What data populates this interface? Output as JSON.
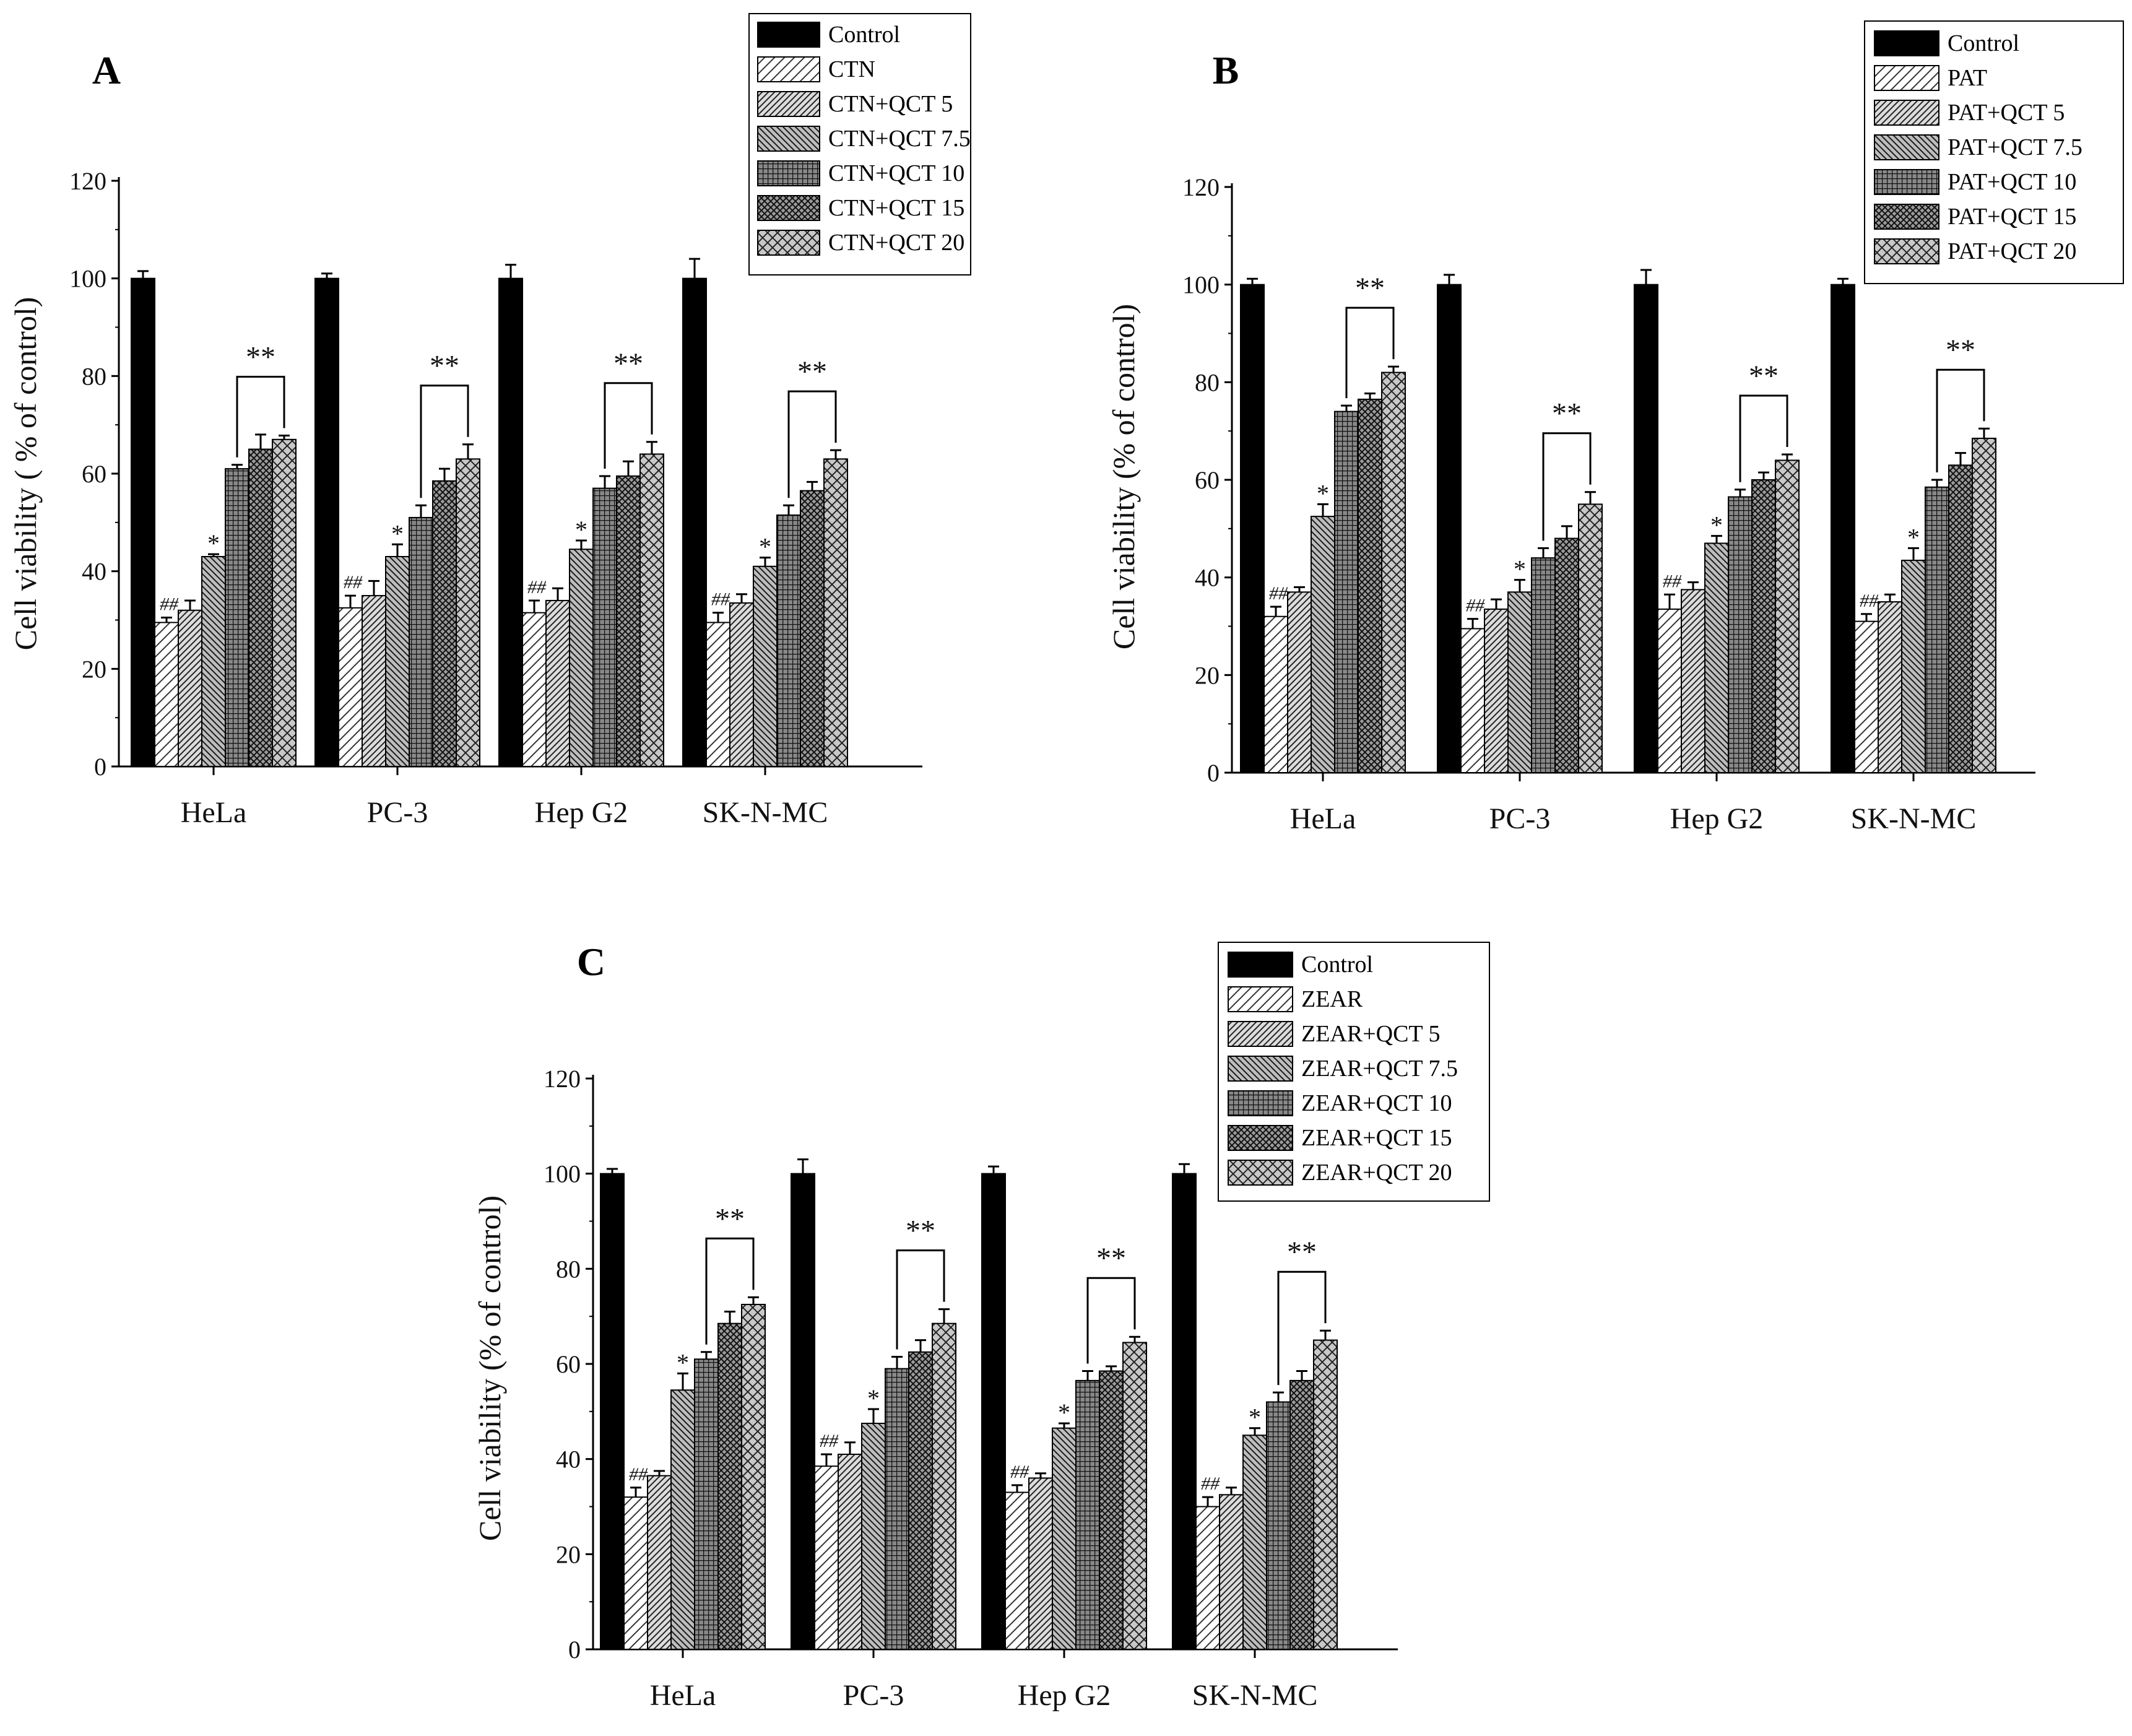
{
  "patterns": [
    {
      "id": "solid",
      "label": "solid black"
    },
    {
      "id": "sparse",
      "label": "sparse diagonal hatch"
    },
    {
      "id": "diag",
      "label": "diagonal hatch"
    },
    {
      "id": "back",
      "label": "back diagonal hatch"
    },
    {
      "id": "grid",
      "label": "dense grid"
    },
    {
      "id": "crossdense",
      "label": "dense cross hatch"
    },
    {
      "id": "cross",
      "label": "cross hatch"
    }
  ],
  "chart_data": [
    {
      "type": "bar",
      "panel_label": "A",
      "ylabel": "Cell viability ( % of control)",
      "ylim": [
        0,
        120
      ],
      "yticks": [
        0,
        20,
        40,
        60,
        80,
        100,
        120
      ],
      "categories": [
        "HeLa",
        "PC-3",
        "Hep G2",
        "SK-N-MC"
      ],
      "legend_position": "top-right",
      "series": [
        {
          "name": "Control",
          "values": [
            100,
            100,
            100,
            100
          ],
          "errors": [
            1.5,
            1,
            2.8,
            4
          ]
        },
        {
          "name": "CTN",
          "values": [
            29.5,
            32.5,
            31.5,
            29.5
          ],
          "errors": [
            1,
            2.5,
            2.5,
            2
          ]
        },
        {
          "name": "CTN+QCT 5",
          "values": [
            32,
            35,
            34,
            33.5
          ],
          "errors": [
            2,
            3,
            2.5,
            1.8
          ]
        },
        {
          "name": "CTN+QCT 7.5",
          "values": [
            43,
            43,
            44.5,
            41
          ],
          "errors": [
            0.5,
            2.5,
            1.8,
            1.8
          ]
        },
        {
          "name": "CTN+QCT 10",
          "values": [
            61,
            51,
            57,
            51.5
          ],
          "errors": [
            0.8,
            2.5,
            2.5,
            2
          ]
        },
        {
          "name": "CTN+QCT 15",
          "values": [
            65,
            58.5,
            59.5,
            56.5
          ],
          "errors": [
            3,
            2.5,
            3,
            1.8
          ]
        },
        {
          "name": "CTN+QCT 20",
          "values": [
            67,
            63,
            64,
            63
          ],
          "errors": [
            0.8,
            3,
            2.5,
            1.8
          ]
        }
      ],
      "annotations": {
        "hash": "##",
        "single_star": "*",
        "double_star": "**"
      }
    },
    {
      "type": "bar",
      "panel_label": "B",
      "ylabel": "Cell viability (% of control)",
      "ylim": [
        0,
        120
      ],
      "yticks": [
        0,
        20,
        40,
        60,
        80,
        100,
        120
      ],
      "categories": [
        "HeLa",
        "PC-3",
        "Hep G2",
        "SK-N-MC"
      ],
      "legend_position": "top-right",
      "series": [
        {
          "name": "Control",
          "values": [
            100,
            100,
            100,
            100
          ],
          "errors": [
            1.2,
            2,
            3,
            1.2
          ]
        },
        {
          "name": "PAT",
          "values": [
            32,
            29.5,
            33.5,
            31
          ],
          "errors": [
            2,
            2,
            3,
            1.5
          ]
        },
        {
          "name": "PAT+QCT 5",
          "values": [
            37,
            33.5,
            37.5,
            35
          ],
          "errors": [
            1,
            2,
            1.5,
            1.5
          ]
        },
        {
          "name": "PAT+QCT 7.5",
          "values": [
            52.5,
            37,
            47,
            43.5
          ],
          "errors": [
            2.5,
            2.5,
            1.5,
            2.5
          ]
        },
        {
          "name": "PAT+QCT 10",
          "values": [
            74,
            44,
            56.5,
            58.5
          ],
          "errors": [
            1.2,
            2,
            1.5,
            1.5
          ]
        },
        {
          "name": "PAT+QCT 15",
          "values": [
            76.5,
            48,
            60,
            63
          ],
          "errors": [
            1.2,
            2.5,
            1.5,
            2.5
          ]
        },
        {
          "name": "PAT+QCT 20",
          "values": [
            82,
            55,
            64,
            68.5
          ],
          "errors": [
            1.2,
            2.5,
            1.2,
            2
          ]
        }
      ],
      "annotations": {
        "hash": "##",
        "single_star": "*",
        "double_star": "**"
      }
    },
    {
      "type": "bar",
      "panel_label": "C",
      "ylabel": "Cell viability (% of control)",
      "ylim": [
        0,
        120
      ],
      "yticks": [
        0,
        20,
        40,
        60,
        80,
        100,
        120
      ],
      "categories": [
        "HeLa",
        "PC-3",
        "Hep G2",
        "SK-N-MC"
      ],
      "legend_position": "top-right",
      "series": [
        {
          "name": "Control",
          "values": [
            100,
            100,
            100,
            100
          ],
          "errors": [
            1,
            3,
            1.5,
            2
          ]
        },
        {
          "name": "ZEAR",
          "values": [
            32,
            38.5,
            33,
            30
          ],
          "errors": [
            2,
            2.5,
            1.5,
            2
          ]
        },
        {
          "name": "ZEAR+QCT 5",
          "values": [
            36.5,
            41,
            36,
            32.5
          ],
          "errors": [
            1,
            2.5,
            1,
            1.5
          ]
        },
        {
          "name": "ZEAR+QCT 7.5",
          "values": [
            54.5,
            47.5,
            46.5,
            45
          ],
          "errors": [
            3.5,
            3,
            1,
            1.5
          ]
        },
        {
          "name": "ZEAR+QCT 10",
          "values": [
            61,
            59,
            56.5,
            52
          ],
          "errors": [
            1.5,
            2.5,
            2,
            2
          ]
        },
        {
          "name": "ZEAR+QCT 15",
          "values": [
            68.5,
            62.5,
            58.5,
            56.5
          ],
          "errors": [
            2.5,
            2.5,
            1,
            2
          ]
        },
        {
          "name": "ZEAR+QCT 20",
          "values": [
            72.5,
            68.5,
            64.5,
            65
          ],
          "errors": [
            1.5,
            3,
            1.2,
            2
          ]
        }
      ],
      "annotations": {
        "hash": "##",
        "single_star": "*",
        "double_star": "**"
      }
    }
  ]
}
